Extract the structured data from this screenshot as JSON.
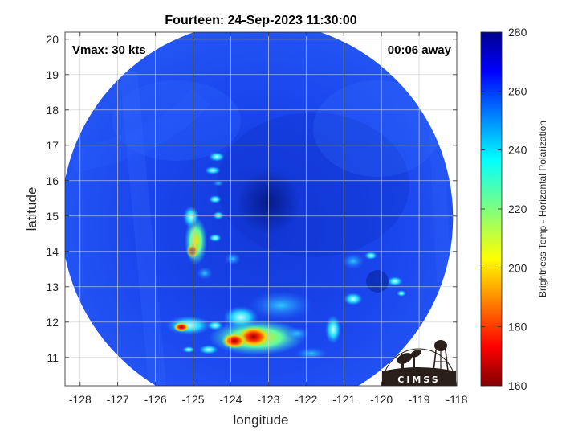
{
  "figure": {
    "title": "Fourteen: 24-Sep-2023 11:30:00",
    "vmax_label": "Vmax: 30 kts",
    "time_label": "00:06 away",
    "logo_text": "CIMSS"
  },
  "map": {
    "xlabel": "longitude",
    "ylabel": "latitude",
    "xlim": [
      -128.4,
      -118
    ],
    "ylim": [
      10.2,
      20.2
    ],
    "xticks": [
      -128,
      -127,
      -126,
      -125,
      -124,
      -123,
      -122,
      -121,
      -120,
      -119,
      -118
    ],
    "yticks": [
      11,
      12,
      13,
      14,
      15,
      16,
      17,
      18,
      19,
      20
    ],
    "grid": true,
    "storm_center": {
      "lon": -123.0,
      "lat": 15.4
    },
    "swath_center": {
      "lon": -123.3,
      "lat": 14.95
    }
  },
  "colorbar": {
    "label": "Brightness Temp - Horizontal Polarization",
    "range": [
      160,
      280
    ],
    "ticks": [
      160,
      180,
      200,
      220,
      240,
      260,
      280
    ],
    "colormap": "jet"
  },
  "colors": {
    "background_field": "#1c4cf2",
    "eye": "#0a20a8",
    "logo_dark": "#2a1f1a"
  }
}
